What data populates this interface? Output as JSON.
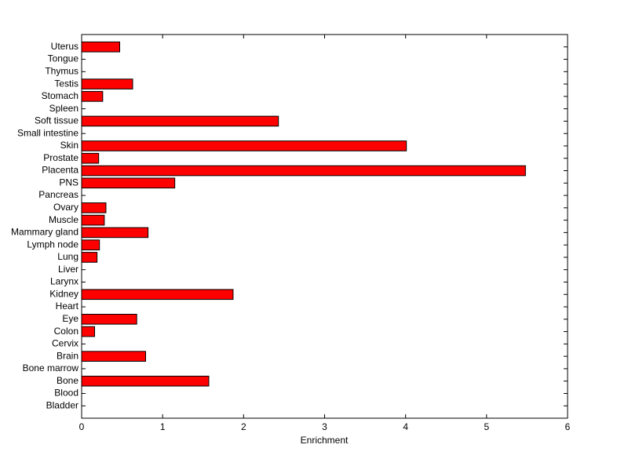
{
  "chart_data": {
    "type": "barh",
    "xlabel": "Enrichment",
    "categories": [
      "Bladder",
      "Blood",
      "Bone",
      "Bone marrow",
      "Brain",
      "Cervix",
      "Colon",
      "Eye",
      "Heart",
      "Kidney",
      "Larynx",
      "Liver",
      "Lung",
      "Lymph node",
      "Mammary gland",
      "Muscle",
      "Ovary",
      "Pancreas",
      "PNS",
      "Placenta",
      "Prostate",
      "Skin",
      "Small intestine",
      "Soft tissue",
      "Spleen",
      "Stomach",
      "Testis",
      "Thymus",
      "Tongue",
      "Uterus"
    ],
    "values": [
      0,
      0,
      1.57,
      0,
      0.79,
      0,
      0.16,
      0.68,
      0,
      1.87,
      0,
      0,
      0.19,
      0.22,
      0.82,
      0.28,
      0.3,
      0,
      1.15,
      5.48,
      0.21,
      4.01,
      0,
      2.43,
      0,
      0.26,
      0.63,
      0,
      0,
      0.47
    ],
    "color": "#ff0000",
    "xlim": [
      0,
      6
    ],
    "xticks": [
      0,
      1,
      2,
      3,
      4,
      5,
      6
    ]
  }
}
